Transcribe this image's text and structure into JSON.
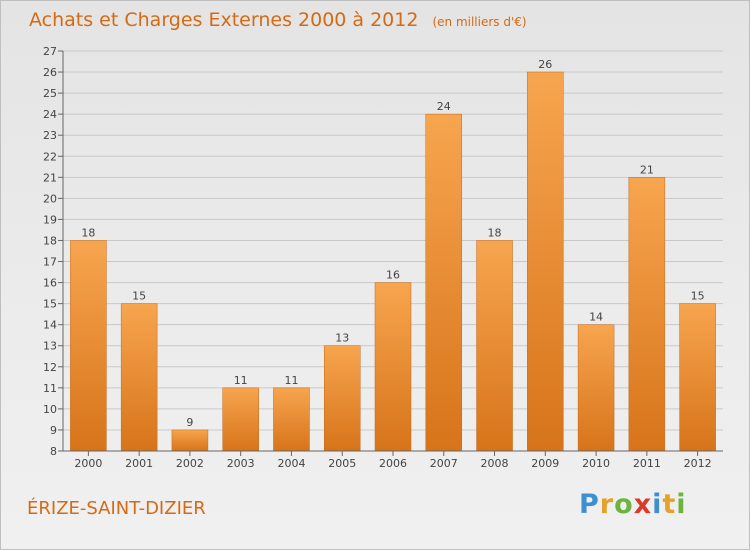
{
  "title": "Achats et Charges Externes 2000 à 2012",
  "subtitle": "(en milliers d'€)",
  "commune": "ÉRIZE-SAINT-DIZIER",
  "logo": {
    "letters": [
      "P",
      "r",
      "o",
      "x",
      "i",
      "t",
      "i"
    ],
    "colors": [
      "#3f8fd0",
      "#e6a12a",
      "#6cb33f",
      "#d93a2b",
      "#3f8fd0",
      "#e6a12a",
      "#6cb33f"
    ]
  },
  "colors": {
    "bar_top": "#f7a54f",
    "bar_bottom": "#d7741a",
    "text": "#d56a14"
  },
  "chart_data": {
    "type": "bar",
    "categories": [
      "2000",
      "2001",
      "2002",
      "2003",
      "2004",
      "2005",
      "2006",
      "2007",
      "2008",
      "2009",
      "2010",
      "2011",
      "2012"
    ],
    "values": [
      18,
      15,
      9,
      11,
      11,
      13,
      16,
      24,
      18,
      26,
      14,
      21,
      15
    ],
    "ylim": [
      8,
      27
    ],
    "yticks": [
      8,
      9,
      10,
      11,
      12,
      13,
      14,
      15,
      16,
      17,
      18,
      19,
      20,
      21,
      22,
      23,
      24,
      25,
      26,
      27
    ],
    "grid": true
  }
}
